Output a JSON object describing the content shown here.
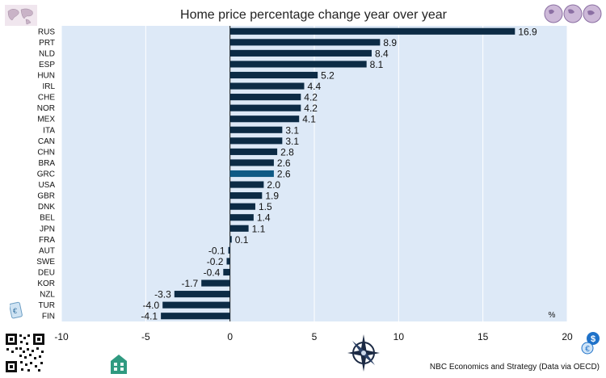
{
  "chart_data": {
    "type": "bar",
    "orientation": "horizontal",
    "title": "Home price percentage change year over year",
    "unit_label": "%",
    "categories": [
      "RUS",
      "PRT",
      "NLD",
      "ESP",
      "HUN",
      "IRL",
      "CHE",
      "NOR",
      "MEX",
      "ITA",
      "CAN",
      "CHN",
      "BRA",
      "GRC",
      "USA",
      "GBR",
      "DNK",
      "BEL",
      "JPN",
      "FRA",
      "AUT",
      "SWE",
      "DEU",
      "KOR",
      "NZL",
      "TUR",
      "FIN"
    ],
    "values": [
      16.9,
      8.9,
      8.4,
      8.1,
      5.2,
      4.4,
      4.2,
      4.2,
      4.1,
      3.1,
      3.1,
      2.8,
      2.6,
      2.6,
      2.0,
      1.9,
      1.5,
      1.4,
      1.1,
      0.1,
      -0.1,
      -0.2,
      -0.4,
      -1.7,
      -3.3,
      -4.0,
      -4.1
    ],
    "value_labels": [
      "16.9",
      "8.9",
      "8.4",
      "8.1",
      "5.2",
      "4.4",
      "4.2",
      "4.2",
      "4.1",
      "3.1",
      "3.1",
      "2.8",
      "2.6",
      "2.6",
      "2.0",
      "1.9",
      "1.5",
      "1.4",
      "1.1",
      "0.1",
      "-0.1",
      "-0.2",
      "-0.4",
      "-1.7",
      "-3.3",
      "-4.0",
      "-4.1"
    ],
    "highlight": "GRC",
    "xlim": [
      -10,
      20
    ],
    "xticks": [
      -10,
      -5,
      0,
      5,
      10,
      15,
      20
    ],
    "grid": true,
    "colors": {
      "bar": "#0c2b45",
      "highlight": "#0f5a85",
      "plot_bg": "#dde9f7",
      "grid": "#ffffff"
    }
  },
  "footer": {
    "source": "NBC Economics and Strategy (Data via OECD)"
  },
  "icons": [
    "world-map-icon",
    "globes-icon",
    "qr-code-icon",
    "house-icon",
    "compass-icon",
    "dollar-euro-icon",
    "euro-note-icon"
  ]
}
